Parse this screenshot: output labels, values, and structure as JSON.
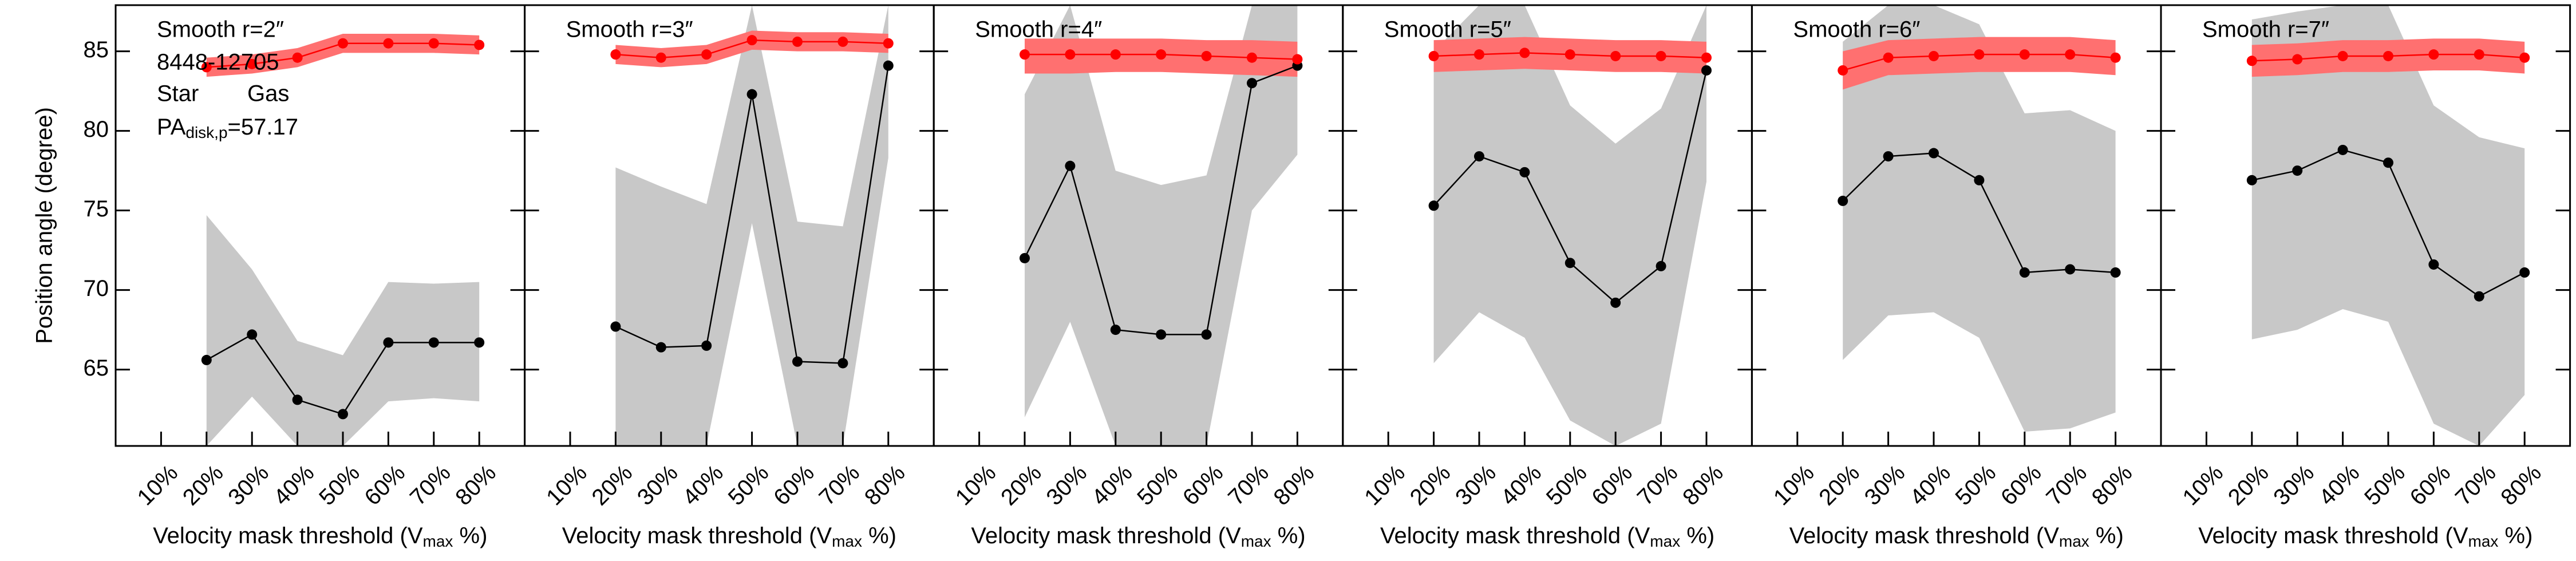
{
  "chart_data": [
    {
      "type": "line",
      "title": "Smooth r=2″",
      "annotations": [
        "8448-12705"
      ],
      "pa_label": {
        "main": "PA",
        "sub": "disk,p",
        "rest": "=57.17"
      },
      "ylabel": "Position angle (degree)",
      "xlabel": {
        "main": "Velocity mask threshold (V",
        "sub": "max",
        "rest": " %)"
      },
      "x": [
        20,
        30,
        40,
        50,
        60,
        70,
        80
      ],
      "xlim": [
        0,
        90
      ],
      "ylim": [
        60.2,
        87.9
      ],
      "ytick_labels": true,
      "xticks": [
        {
          "value": 10,
          "label": "10%"
        },
        {
          "value": 20,
          "label": "20%"
        },
        {
          "value": 30,
          "label": "30%"
        },
        {
          "value": 40,
          "label": "40%"
        },
        {
          "value": 50,
          "label": "50%"
        },
        {
          "value": 60,
          "label": "60%"
        },
        {
          "value": 70,
          "label": "70%"
        },
        {
          "value": 80,
          "label": "80%"
        }
      ],
      "yticks": [
        65,
        70,
        75,
        80,
        85
      ],
      "legend": true,
      "series": [
        {
          "name": "Star",
          "color": "#000000",
          "band_color": "#c8c8c8",
          "values": [
            65.6,
            67.2,
            63.1,
            62.2,
            66.7,
            66.7,
            66.7
          ],
          "band_low": [
            60.2,
            63.3,
            60.2,
            60.2,
            63.0,
            63.2,
            63.0
          ],
          "band_high": [
            74.7,
            71.3,
            66.8,
            65.9,
            70.5,
            70.4,
            70.5
          ]
        },
        {
          "name": "Gas",
          "color": "#ff0000",
          "band_color": "#ff7070",
          "values": [
            84.0,
            84.2,
            84.6,
            85.5,
            85.5,
            85.5,
            85.4
          ],
          "band_low": [
            83.4,
            83.6,
            84.0,
            84.9,
            84.9,
            84.9,
            84.8
          ],
          "band_high": [
            84.6,
            84.8,
            85.2,
            86.1,
            86.1,
            86.1,
            86.0
          ]
        }
      ]
    },
    {
      "type": "line",
      "title": "Smooth r=3″",
      "xlabel": {
        "main": "Velocity mask threshold (V",
        "sub": "max",
        "rest": " %)"
      },
      "x": [
        20,
        30,
        40,
        50,
        60,
        70,
        80
      ],
      "xlim": [
        0,
        90
      ],
      "ylim": [
        60.2,
        87.9
      ],
      "ytick_labels": false,
      "xticks": [
        {
          "value": 10,
          "label": "10%"
        },
        {
          "value": 20,
          "label": "20%"
        },
        {
          "value": 30,
          "label": "30%"
        },
        {
          "value": 40,
          "label": "40%"
        },
        {
          "value": 50,
          "label": "50%"
        },
        {
          "value": 60,
          "label": "60%"
        },
        {
          "value": 70,
          "label": "70%"
        },
        {
          "value": 80,
          "label": "80%"
        }
      ],
      "yticks": [
        65,
        70,
        75,
        80,
        85
      ],
      "series": [
        {
          "color": "#000000",
          "band_color": "#c8c8c8",
          "values": [
            67.7,
            66.4,
            66.5,
            82.3,
            65.5,
            65.4,
            84.1
          ],
          "band_low": [
            60.2,
            60.2,
            60.2,
            74.2,
            60.2,
            60.2,
            78.3
          ],
          "band_high": [
            77.7,
            76.5,
            75.4,
            87.9,
            74.3,
            74.0,
            87.9
          ]
        },
        {
          "color": "#ff0000",
          "band_color": "#ff7070",
          "values": [
            84.8,
            84.6,
            84.8,
            85.7,
            85.6,
            85.6,
            85.5
          ],
          "band_low": [
            84.2,
            84.0,
            84.2,
            85.1,
            85.0,
            85.0,
            84.9
          ],
          "band_high": [
            85.4,
            85.2,
            85.4,
            86.3,
            86.2,
            86.2,
            86.1
          ]
        }
      ]
    },
    {
      "type": "line",
      "title": "Smooth r=4″",
      "xlabel": {
        "main": "Velocity mask threshold (V",
        "sub": "max",
        "rest": " %)"
      },
      "x": [
        20,
        30,
        40,
        50,
        60,
        70,
        80
      ],
      "xlim": [
        0,
        90
      ],
      "ylim": [
        60.2,
        87.9
      ],
      "ytick_labels": false,
      "xticks": [
        {
          "value": 10,
          "label": "10%"
        },
        {
          "value": 20,
          "label": "20%"
        },
        {
          "value": 30,
          "label": "30%"
        },
        {
          "value": 40,
          "label": "40%"
        },
        {
          "value": 50,
          "label": "50%"
        },
        {
          "value": 60,
          "label": "60%"
        },
        {
          "value": 70,
          "label": "70%"
        },
        {
          "value": 80,
          "label": "80%"
        }
      ],
      "yticks": [
        65,
        70,
        75,
        80,
        85
      ],
      "series": [
        {
          "color": "#000000",
          "band_color": "#c8c8c8",
          "values": [
            72.0,
            77.8,
            67.5,
            67.2,
            67.2,
            83.0,
            84.1
          ],
          "band_low": [
            62.0,
            68.0,
            60.2,
            60.2,
            60.2,
            75.0,
            78.5
          ],
          "band_high": [
            82.3,
            87.9,
            77.5,
            76.6,
            77.2,
            87.9,
            87.9
          ]
        },
        {
          "color": "#ff0000",
          "band_color": "#ff7070",
          "values": [
            84.8,
            84.8,
            84.8,
            84.8,
            84.7,
            84.6,
            84.5
          ],
          "band_low": [
            83.6,
            83.6,
            83.7,
            83.7,
            83.6,
            83.5,
            83.4
          ],
          "band_high": [
            85.8,
            85.8,
            85.8,
            85.8,
            85.7,
            85.7,
            85.6
          ]
        }
      ]
    },
    {
      "type": "line",
      "title": "Smooth r=5″",
      "xlabel": {
        "main": "Velocity mask threshold (V",
        "sub": "max",
        "rest": " %)"
      },
      "x": [
        20,
        30,
        40,
        50,
        60,
        70,
        80
      ],
      "xlim": [
        0,
        90
      ],
      "ylim": [
        60.2,
        87.9
      ],
      "ytick_labels": false,
      "xticks": [
        {
          "value": 10,
          "label": "10%"
        },
        {
          "value": 20,
          "label": "20%"
        },
        {
          "value": 30,
          "label": "30%"
        },
        {
          "value": 40,
          "label": "40%"
        },
        {
          "value": 50,
          "label": "50%"
        },
        {
          "value": 60,
          "label": "60%"
        },
        {
          "value": 70,
          "label": "70%"
        },
        {
          "value": 80,
          "label": "80%"
        }
      ],
      "yticks": [
        65,
        70,
        75,
        80,
        85
      ],
      "series": [
        {
          "color": "#000000",
          "band_color": "#c8c8c8",
          "values": [
            75.3,
            78.4,
            77.4,
            71.7,
            69.2,
            71.5,
            83.8
          ],
          "band_low": [
            65.4,
            68.6,
            67.0,
            61.8,
            60.2,
            61.6,
            76.8
          ],
          "band_high": [
            85.0,
            87.9,
            87.9,
            81.6,
            79.2,
            81.4,
            87.9
          ]
        },
        {
          "color": "#ff0000",
          "band_color": "#ff7070",
          "values": [
            84.7,
            84.8,
            84.9,
            84.8,
            84.7,
            84.7,
            84.6
          ],
          "band_low": [
            83.7,
            83.8,
            83.9,
            83.8,
            83.7,
            83.7,
            83.6
          ],
          "band_high": [
            85.7,
            85.8,
            85.9,
            85.8,
            85.7,
            85.7,
            85.6
          ]
        }
      ]
    },
    {
      "type": "line",
      "title": "Smooth r=6″",
      "xlabel": {
        "main": "Velocity mask threshold (V",
        "sub": "max",
        "rest": " %)"
      },
      "x": [
        20,
        30,
        40,
        50,
        60,
        70,
        80
      ],
      "xlim": [
        0,
        90
      ],
      "ylim": [
        60.2,
        87.9
      ],
      "ytick_labels": false,
      "xticks": [
        {
          "value": 10,
          "label": "10%"
        },
        {
          "value": 20,
          "label": "20%"
        },
        {
          "value": 30,
          "label": "30%"
        },
        {
          "value": 40,
          "label": "40%"
        },
        {
          "value": 50,
          "label": "50%"
        },
        {
          "value": 60,
          "label": "60%"
        },
        {
          "value": 70,
          "label": "70%"
        },
        {
          "value": 80,
          "label": "80%"
        }
      ],
      "yticks": [
        65,
        70,
        75,
        80,
        85
      ],
      "series": [
        {
          "color": "#000000",
          "band_color": "#c8c8c8",
          "values": [
            75.6,
            78.4,
            78.6,
            76.9,
            71.1,
            71.3,
            71.1
          ],
          "band_low": [
            65.6,
            68.4,
            68.6,
            67.0,
            61.1,
            61.3,
            62.3
          ],
          "band_high": [
            85.6,
            87.9,
            87.9,
            86.7,
            81.1,
            81.3,
            80.0
          ]
        },
        {
          "color": "#ff0000",
          "band_color": "#ff7070",
          "values": [
            83.8,
            84.6,
            84.7,
            84.8,
            84.8,
            84.8,
            84.6
          ],
          "band_low": [
            82.6,
            83.5,
            83.6,
            83.7,
            83.7,
            83.7,
            83.5
          ],
          "band_high": [
            85.0,
            85.7,
            85.8,
            85.9,
            85.9,
            85.9,
            85.7
          ]
        }
      ]
    },
    {
      "type": "line",
      "title": "Smooth r=7″",
      "xlabel": {
        "main": "Velocity mask threshold (V",
        "sub": "max",
        "rest": " %)"
      },
      "x": [
        20,
        30,
        40,
        50,
        60,
        70,
        80
      ],
      "xlim": [
        0,
        90
      ],
      "ylim": [
        60.2,
        87.9
      ],
      "ytick_labels": false,
      "xticks": [
        {
          "value": 10,
          "label": "10%"
        },
        {
          "value": 20,
          "label": "20%"
        },
        {
          "value": 30,
          "label": "30%"
        },
        {
          "value": 40,
          "label": "40%"
        },
        {
          "value": 50,
          "label": "50%"
        },
        {
          "value": 60,
          "label": "60%"
        },
        {
          "value": 70,
          "label": "70%"
        },
        {
          "value": 80,
          "label": "80%"
        }
      ],
      "yticks": [
        65,
        70,
        75,
        80,
        85
      ],
      "series": [
        {
          "color": "#000000",
          "band_color": "#c8c8c8",
          "values": [
            76.9,
            77.5,
            78.8,
            78.0,
            71.6,
            69.6,
            71.1
          ],
          "band_low": [
            66.9,
            67.5,
            68.8,
            68.0,
            61.6,
            60.2,
            63.4
          ],
          "band_high": [
            87.0,
            87.5,
            87.9,
            87.9,
            81.6,
            79.6,
            78.9
          ]
        },
        {
          "color": "#ff0000",
          "band_color": "#ff7070",
          "values": [
            84.4,
            84.5,
            84.7,
            84.7,
            84.8,
            84.8,
            84.6
          ],
          "band_low": [
            83.4,
            83.5,
            83.7,
            83.7,
            83.8,
            83.8,
            83.6
          ],
          "band_high": [
            85.4,
            85.5,
            85.7,
            85.7,
            85.8,
            85.8,
            85.6
          ]
        }
      ]
    }
  ]
}
